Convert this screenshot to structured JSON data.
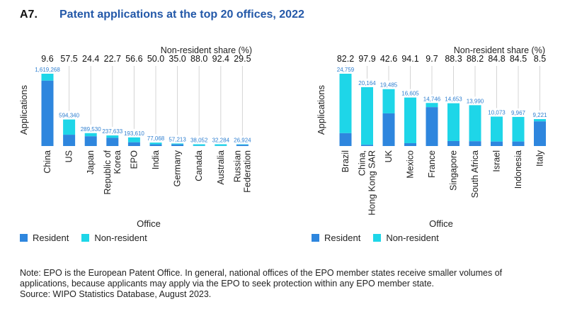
{
  "figure": {
    "number": "A7.",
    "title": "Patent applications at the top 20 offices, 2022"
  },
  "colors": {
    "resident": "#2e86de",
    "non_resident": "#1ed6e8"
  },
  "legend": {
    "resident": "Resident",
    "non_resident": "Non-resident"
  },
  "chart_data": [
    {
      "type": "bar",
      "stacked": true,
      "title": "",
      "top_label": "Non-resident share (%)",
      "ylabel": "Applications",
      "xlabel": "Office",
      "categories": [
        "China",
        "US",
        "Japan",
        "Republic of Korea",
        "EPO",
        "India",
        "Germany",
        "Canada",
        "Australia",
        "Russian Federation"
      ],
      "category_lines": [
        [
          "China"
        ],
        [
          "US"
        ],
        [
          "Japan"
        ],
        [
          "Republic of",
          "Korea"
        ],
        [
          "EPO"
        ],
        [
          "India"
        ],
        [
          "Germany"
        ],
        [
          "Canada"
        ],
        [
          "Australia"
        ],
        [
          "Russian",
          "Federation"
        ]
      ],
      "totals": [
        1619268,
        594340,
        289530,
        237633,
        193610,
        77068,
        57213,
        38052,
        32284,
        26924
      ],
      "total_labels": [
        "1,619,268",
        "594,340",
        "289,530",
        "237,633",
        "193,610",
        "77,068",
        "57,213",
        "38,052",
        "32,284",
        "26,924"
      ],
      "share_labels": [
        "9.6",
        "57.5",
        "24.4",
        "22.7",
        "56.6",
        "50.0",
        "35.0",
        "88.0",
        "92.4",
        "29.5"
      ],
      "non_resident_share": [
        9.6,
        57.5,
        24.4,
        22.7,
        56.6,
        50.0,
        35.0,
        88.0,
        92.4,
        29.5
      ],
      "series": [
        {
          "name": "Resident"
        },
        {
          "name": "Non-resident"
        }
      ],
      "ylim": [
        0,
        1619268
      ]
    },
    {
      "type": "bar",
      "stacked": true,
      "title": "",
      "top_label": "Non-resident share (%)",
      "ylabel": "Applications",
      "xlabel": "Office",
      "categories": [
        "Brazil",
        "China, Hong Kong SAR",
        "UK",
        "Mexico",
        "France",
        "Singapore",
        "South Africa",
        "Israel",
        "Indonesia",
        "Italy"
      ],
      "category_lines": [
        [
          "Brazil"
        ],
        [
          "China,",
          "Hong Kong SAR"
        ],
        [
          "UK"
        ],
        [
          "Mexico"
        ],
        [
          "France"
        ],
        [
          "Singapore"
        ],
        [
          "South Africa"
        ],
        [
          "Israel"
        ],
        [
          "Indonesia"
        ],
        [
          "Italy"
        ]
      ],
      "totals": [
        24759,
        20164,
        19485,
        16605,
        14746,
        14653,
        13990,
        10073,
        9967,
        9221
      ],
      "total_labels": [
        "24,759",
        "20,164",
        "19,485",
        "16,605",
        "14,746",
        "14,653",
        "13,990",
        "10,073",
        "9,967",
        "9,221"
      ],
      "share_labels": [
        "82.2",
        "97.9",
        "42.6",
        "94.1",
        "9.7",
        "88.3",
        "88.2",
        "84.8",
        "84.5",
        "8.5"
      ],
      "non_resident_share": [
        82.2,
        97.9,
        42.6,
        94.1,
        9.7,
        88.3,
        88.2,
        84.8,
        84.5,
        8.5
      ],
      "series": [
        {
          "name": "Resident"
        },
        {
          "name": "Non-resident"
        }
      ],
      "ylim": [
        0,
        24759
      ]
    }
  ],
  "notes": [
    "Note: EPO is the European Patent Office. In general, national offices of the EPO member states receive smaller volumes of",
    "applications, because applicants may apply via the EPO to seek protection within any EPO member state.",
    "Source: WIPO Statistics Database, August 2023."
  ]
}
